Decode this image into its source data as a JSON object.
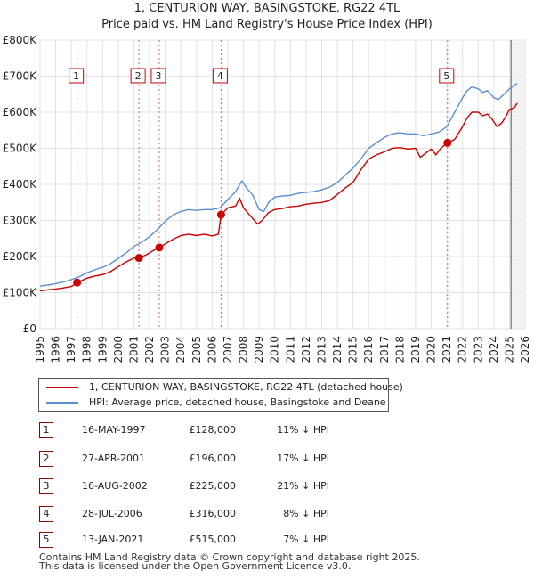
{
  "title_line1": "1, CENTURION WAY, BASINGSTOKE, RG22 4TL",
  "title_line2": "Price paid vs. HM Land Registry's House Price Index (HPI)",
  "colors": {
    "price": "#cc0000",
    "hpi": "#5b8fd1",
    "marker": "#cc0000",
    "vline": "#e06060"
  },
  "chart_data": {
    "type": "line",
    "x_range": [
      1995,
      2026
    ],
    "y_range": [
      0,
      800000
    ],
    "x_ticks": [
      "1995",
      "1996",
      "1997",
      "1998",
      "1999",
      "2000",
      "2001",
      "2002",
      "2003",
      "2004",
      "2005",
      "2006",
      "2007",
      "2008",
      "2009",
      "2010",
      "2011",
      "2012",
      "2013",
      "2014",
      "2015",
      "2016",
      "2017",
      "2018",
      "2019",
      "2020",
      "2021",
      "2022",
      "2023",
      "2024",
      "2025",
      "2026"
    ],
    "y_ticks": [
      {
        "value": 0,
        "label": "£0"
      },
      {
        "value": 100000,
        "label": "£100K"
      },
      {
        "value": 200000,
        "label": "£200K"
      },
      {
        "value": 300000,
        "label": "£300K"
      },
      {
        "value": 400000,
        "label": "£400K"
      },
      {
        "value": 500000,
        "label": "£500K"
      },
      {
        "value": 600000,
        "label": "£600K"
      },
      {
        "value": 700000,
        "label": "£700K"
      },
      {
        "value": 800000,
        "label": "£800K"
      }
    ],
    "forecast_start": 2025.1,
    "series": [
      {
        "name": "1, CENTURION WAY, BASINGSTOKE, RG22 4TL (detached house)",
        "color": "#cc0000",
        "x": [
          1995.0,
          1995.5,
          1996.0,
          1996.5,
          1997.0,
          1997.37,
          1998.0,
          1998.5,
          1999.0,
          1999.5,
          2000.0,
          2000.5,
          2001.0,
          2001.32,
          2001.8,
          2002.3,
          2002.62,
          2003.0,
          2003.5,
          2004.0,
          2004.5,
          2005.0,
          2005.5,
          2006.0,
          2006.4,
          2006.57,
          2007.0,
          2007.5,
          2007.75,
          2008.0,
          2008.5,
          2008.9,
          2009.2,
          2009.6,
          2010.0,
          2010.5,
          2011.0,
          2011.5,
          2012.0,
          2012.5,
          2013.0,
          2013.5,
          2014.0,
          2014.5,
          2015.0,
          2015.5,
          2016.0,
          2016.5,
          2017.0,
          2017.5,
          2018.0,
          2018.5,
          2019.0,
          2019.3,
          2019.6,
          2020.0,
          2020.3,
          2020.6,
          2021.04,
          2021.5,
          2022.0,
          2022.3,
          2022.6,
          2023.0,
          2023.3,
          2023.6,
          2023.9,
          2024.2,
          2024.5,
          2024.8,
          2025.0,
          2025.3,
          2025.5
        ],
        "y": [
          105000,
          108000,
          110000,
          113000,
          117000,
          128000,
          140000,
          146000,
          150000,
          158000,
          172000,
          185000,
          196000,
          196000,
          205000,
          218000,
          225000,
          235000,
          248000,
          258000,
          262000,
          258000,
          262000,
          257000,
          262000,
          316000,
          335000,
          340000,
          362000,
          335000,
          310000,
          290000,
          300000,
          322000,
          330000,
          333000,
          338000,
          340000,
          345000,
          348000,
          350000,
          355000,
          372000,
          390000,
          405000,
          440000,
          470000,
          482000,
          490000,
          500000,
          502000,
          498000,
          500000,
          475000,
          485000,
          498000,
          482000,
          500000,
          515000,
          525000,
          560000,
          585000,
          600000,
          600000,
          590000,
          595000,
          580000,
          560000,
          570000,
          590000,
          608000,
          612000,
          625000
        ]
      },
      {
        "name": "HPI: Average price, detached house, Basingstoke and Deane",
        "color": "#5b8fd1",
        "x": [
          1995.0,
          1995.5,
          1996.0,
          1996.5,
          1997.0,
          1997.5,
          1998.0,
          1998.5,
          1999.0,
          1999.5,
          2000.0,
          2000.5,
          2001.0,
          2001.5,
          2002.0,
          2002.5,
          2003.0,
          2003.5,
          2004.0,
          2004.5,
          2005.0,
          2005.5,
          2006.0,
          2006.5,
          2007.0,
          2007.5,
          2007.9,
          2008.2,
          2008.6,
          2009.0,
          2009.3,
          2009.6,
          2010.0,
          2010.5,
          2011.0,
          2011.5,
          2012.0,
          2012.5,
          2013.0,
          2013.5,
          2014.0,
          2014.5,
          2015.0,
          2015.5,
          2016.0,
          2016.5,
          2017.0,
          2017.5,
          2018.0,
          2018.5,
          2019.0,
          2019.5,
          2020.0,
          2020.5,
          2021.0,
          2021.5,
          2022.0,
          2022.3,
          2022.6,
          2023.0,
          2023.3,
          2023.6,
          2024.0,
          2024.3,
          2024.6,
          2025.0,
          2025.5
        ],
        "y": [
          118000,
          121000,
          125000,
          130000,
          136000,
          144000,
          155000,
          163000,
          170000,
          180000,
          195000,
          210000,
          228000,
          240000,
          255000,
          275000,
          298000,
          315000,
          325000,
          330000,
          328000,
          330000,
          330000,
          335000,
          358000,
          380000,
          410000,
          390000,
          370000,
          330000,
          325000,
          350000,
          365000,
          368000,
          370000,
          375000,
          378000,
          380000,
          385000,
          392000,
          405000,
          425000,
          445000,
          470000,
          500000,
          515000,
          530000,
          540000,
          543000,
          540000,
          540000,
          535000,
          540000,
          545000,
          560000,
          600000,
          640000,
          660000,
          670000,
          665000,
          655000,
          660000,
          640000,
          635000,
          648000,
          665000,
          680000
        ]
      }
    ],
    "sales": [
      {
        "label": "1",
        "x": 1997.37,
        "y": 128000
      },
      {
        "label": "2",
        "x": 2001.32,
        "y": 196000
      },
      {
        "label": "3",
        "x": 2002.62,
        "y": 225000
      },
      {
        "label": "4",
        "x": 2006.57,
        "y": 316000
      },
      {
        "label": "5",
        "x": 2021.04,
        "y": 515000
      }
    ]
  },
  "legend": {
    "price_label": "1, CENTURION WAY, BASINGSTOKE, RG22 4TL (detached house)",
    "hpi_label": "HPI: Average price, detached house, Basingstoke and Deane"
  },
  "table": [
    {
      "num": "1",
      "date": "16-MAY-1997",
      "price": "£128,000",
      "hpi": "11% ↓ HPI"
    },
    {
      "num": "2",
      "date": "27-APR-2001",
      "price": "£196,000",
      "hpi": "17% ↓ HPI"
    },
    {
      "num": "3",
      "date": "16-AUG-2002",
      "price": "£225,000",
      "hpi": "21% ↓ HPI"
    },
    {
      "num": "4",
      "date": "28-JUL-2006",
      "price": "£316,000",
      "hpi": "8% ↓ HPI"
    },
    {
      "num": "5",
      "date": "13-JAN-2021",
      "price": "£515,000",
      "hpi": "7% ↓ HPI"
    }
  ],
  "footer": {
    "line1": "Contains HM Land Registry data © Crown copyright and database right 2025.",
    "line2": "This data is licensed under the Open Government Licence v3.0."
  }
}
